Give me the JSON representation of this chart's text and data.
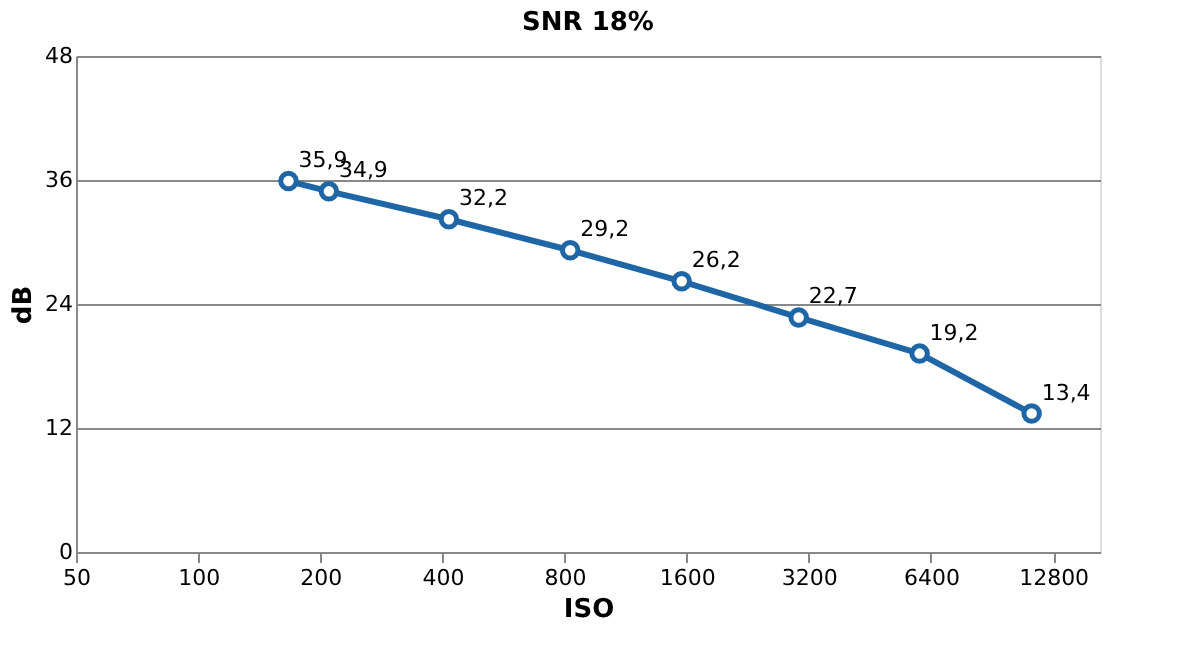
{
  "chart_data": {
    "type": "line",
    "title": "SNR 18%",
    "xlabel": "ISO",
    "ylabel": "dB",
    "log": "x",
    "x": [
      167,
      210,
      415,
      826,
      1555,
      3020,
      6000,
      11330
    ],
    "series": [
      {
        "color": "#1f66a6",
        "values": [
          35.9,
          34.9,
          32.2,
          29.2,
          26.2,
          22.7,
          19.2,
          13.4
        ],
        "value_labels": [
          "35,9",
          "34,9",
          "32,2",
          "29,2",
          "26,2",
          "22,7",
          "19,2",
          "13,4"
        ]
      }
    ],
    "xlim": [
      50,
      16700
    ],
    "xticks": [
      50,
      100,
      200,
      400,
      800,
      1600,
      3200,
      6400,
      12800
    ],
    "ylim": [
      0,
      48
    ],
    "yticks": [
      0,
      12,
      24,
      36,
      48
    ],
    "grid": "y",
    "marker": "circle",
    "line_style": "solid"
  }
}
